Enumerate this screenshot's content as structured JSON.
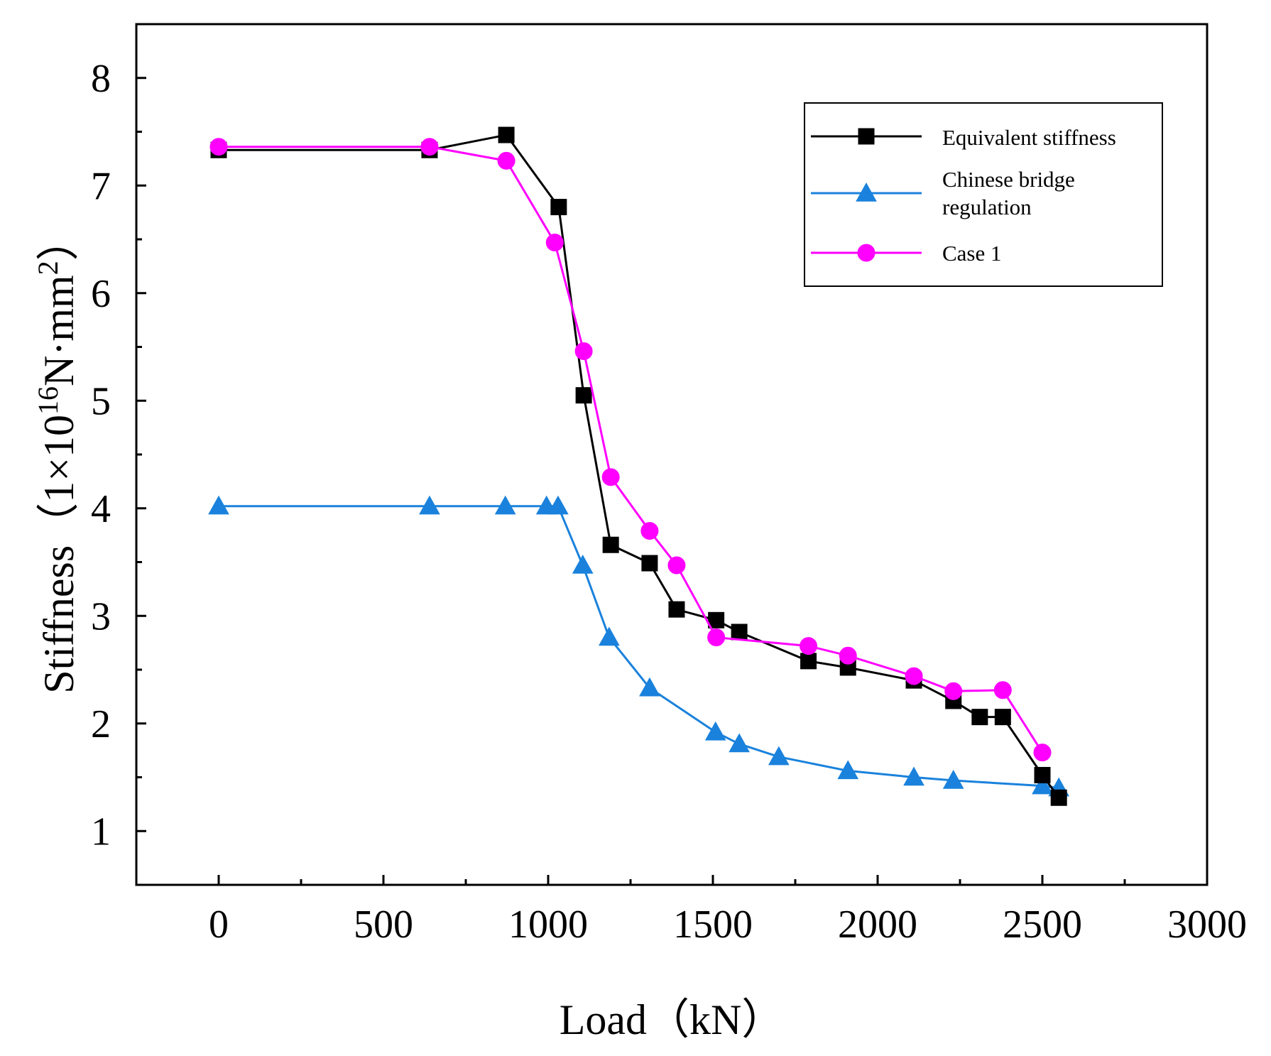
{
  "chart_data": {
    "type": "line",
    "xlabel": "Load（kN）",
    "ylabel": {
      "prefix": "Stiffness（1×10",
      "exponent": "16",
      "unit": "N·mm",
      "unit_exponent": "2",
      "suffix": "）"
    },
    "xlim": [
      -250,
      3000
    ],
    "ylim": [
      0.5,
      8.5
    ],
    "x_ticks": [
      0,
      500,
      1000,
      1500,
      2000,
      2500,
      3000
    ],
    "x_tick_labels": [
      "0",
      "500",
      "1000",
      "1500",
      "2000",
      "2500",
      "3000"
    ],
    "y_ticks": [
      1,
      2,
      3,
      4,
      5,
      6,
      7,
      8
    ],
    "y_tick_labels": [
      "1",
      "2",
      "3",
      "4",
      "5",
      "6",
      "7",
      "8"
    ],
    "grid": false,
    "legend_position": "top-right",
    "legend": {
      "items": [
        {
          "lines": [
            "Equivalent stiffness"
          ]
        },
        {
          "lines": [
            "Chinese bridge",
            "regulation"
          ]
        },
        {
          "lines": [
            "Case 1"
          ]
        }
      ]
    },
    "series": [
      {
        "name": "Equivalent stiffness",
        "color": "#000000",
        "marker": "square",
        "points": [
          [
            0,
            7.33
          ],
          [
            640,
            7.33
          ],
          [
            873,
            7.47
          ],
          [
            1032,
            6.8
          ],
          [
            1108,
            5.05
          ],
          [
            1190,
            3.66
          ],
          [
            1308,
            3.49
          ],
          [
            1390,
            3.06
          ],
          [
            1510,
            2.96
          ],
          [
            1580,
            2.85
          ],
          [
            1790,
            2.58
          ],
          [
            1910,
            2.52
          ],
          [
            2110,
            2.4
          ],
          [
            2230,
            2.21
          ],
          [
            2310,
            2.06
          ],
          [
            2380,
            2.06
          ],
          [
            2500,
            1.52
          ],
          [
            2550,
            1.31
          ]
        ]
      },
      {
        "name": "Chinese bridge regulation",
        "color": "#1a82dc",
        "marker": "triangle",
        "points": [
          [
            0,
            4.02
          ],
          [
            640,
            4.02
          ],
          [
            870,
            4.02
          ],
          [
            995,
            4.02
          ],
          [
            1030,
            4.02
          ],
          [
            1105,
            3.47
          ],
          [
            1185,
            2.8
          ],
          [
            1308,
            2.33
          ],
          [
            1508,
            1.92
          ],
          [
            1580,
            1.81
          ],
          [
            1700,
            1.69
          ],
          [
            1910,
            1.56
          ],
          [
            2110,
            1.5
          ],
          [
            2230,
            1.47
          ],
          [
            2500,
            1.42
          ],
          [
            2550,
            1.4
          ]
        ]
      },
      {
        "name": "Case 1",
        "color": "#ff00ff",
        "marker": "circle",
        "points": [
          [
            0,
            7.36
          ],
          [
            640,
            7.36
          ],
          [
            873,
            7.23
          ],
          [
            1020,
            6.47
          ],
          [
            1108,
            5.46
          ],
          [
            1190,
            4.29
          ],
          [
            1308,
            3.79
          ],
          [
            1390,
            3.47
          ],
          [
            1510,
            2.8
          ],
          [
            1790,
            2.72
          ],
          [
            1910,
            2.63
          ],
          [
            2110,
            2.44
          ],
          [
            2230,
            2.3
          ],
          [
            2380,
            2.31
          ],
          [
            2500,
            1.73
          ]
        ]
      }
    ]
  }
}
